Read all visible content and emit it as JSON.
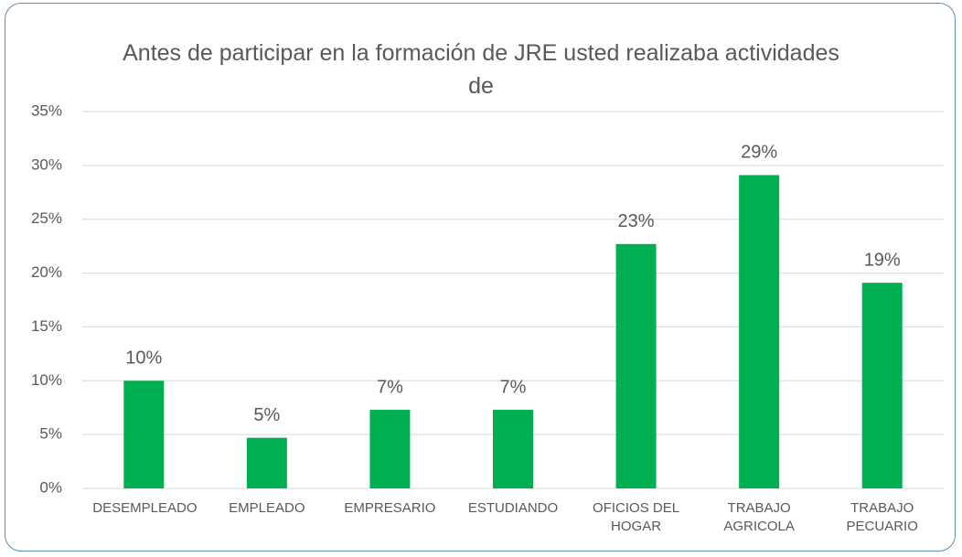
{
  "chart_data": {
    "type": "bar",
    "title": "Antes de participar en la formación de JRE usted realizaba actividades de",
    "categories": [
      "DESEMPLEADO",
      "EMPLEADO",
      "EMPRESARIO",
      "ESTUDIANDO",
      "OFICIOS DEL HOGAR",
      "TRABAJO AGRICOLA",
      "TRABAJO PECUARIO"
    ],
    "values": [
      10,
      4.7,
      7.3,
      7.3,
      22.7,
      29.1,
      19.1
    ],
    "value_labels": [
      "10%",
      "5%",
      "7%",
      "7%",
      "23%",
      "29%",
      "19%"
    ],
    "color": "#00b050",
    "ylim": [
      0,
      35
    ],
    "yticks": [
      {
        "value": 0,
        "label": "0%"
      },
      {
        "value": 5,
        "label": "5%"
      },
      {
        "value": 10,
        "label": "10%"
      },
      {
        "value": 15,
        "label": "15%"
      },
      {
        "value": 20,
        "label": "20%"
      },
      {
        "value": 25,
        "label": "25%"
      },
      {
        "value": 30,
        "label": "30%"
      },
      {
        "value": 35,
        "label": "35%"
      }
    ],
    "grid": true
  }
}
